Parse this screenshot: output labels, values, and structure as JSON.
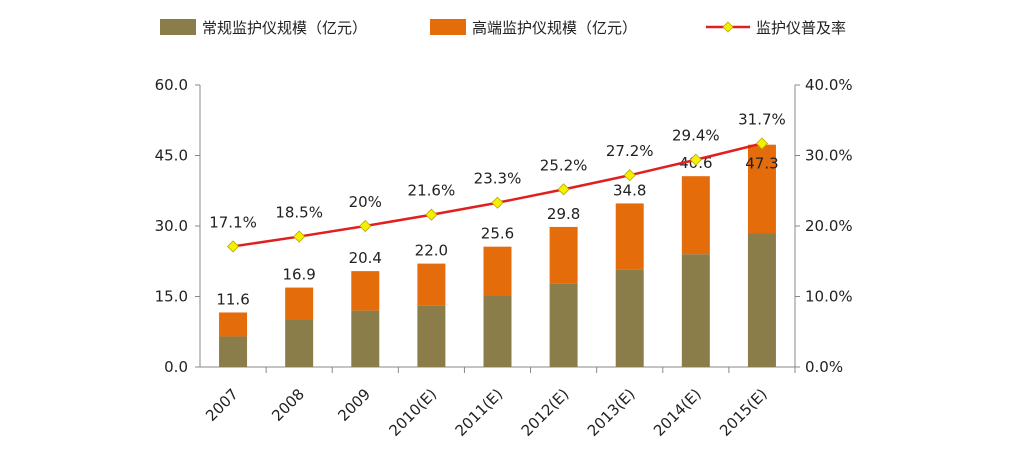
{
  "chart_data": {
    "type": "bar",
    "stacked": true,
    "categories": [
      "2007",
      "2008",
      "2009",
      "2010(E)",
      "2011(E)",
      "2012(E)",
      "2013(E)",
      "2014(E)",
      "2015(E)"
    ],
    "series": [
      {
        "name": "常规监护仪规模（亿元）",
        "type": "bar",
        "axis": "left",
        "color": "#8b7d4a",
        "values": [
          6.5,
          10.0,
          12.0,
          13.0,
          15.3,
          17.8,
          20.8,
          24.0,
          28.5
        ]
      },
      {
        "name": "高端监护仪规模（亿元）",
        "type": "bar",
        "axis": "left",
        "color": "#e46c0a",
        "values": [
          5.1,
          6.9,
          8.4,
          9.0,
          10.3,
          12.0,
          14.0,
          16.6,
          18.8
        ]
      },
      {
        "name": "监护仪普及率",
        "type": "line",
        "axis": "right",
        "color": "#e02020",
        "marker_color": "#f5f000",
        "values": [
          17.1,
          18.5,
          20.0,
          21.6,
          23.3,
          25.2,
          27.2,
          29.4,
          31.7
        ],
        "labels": [
          "17.1%",
          "18.5%",
          "20%",
          "21.6%",
          "23.3%",
          "25.2%",
          "27.2%",
          "29.4%",
          "31.7%"
        ]
      }
    ],
    "total_labels": [
      "11.6",
      "16.9",
      "20.4",
      "22.0",
      "25.6",
      "29.8",
      "34.8",
      "40.6",
      "47.3"
    ],
    "left_axis": {
      "ylim": [
        0,
        60
      ],
      "ticks": [
        "0.0",
        "15.0",
        "30.0",
        "45.0",
        "60.0"
      ]
    },
    "right_axis": {
      "ylim": [
        0,
        40
      ],
      "ticks": [
        "0.0%",
        "10.0%",
        "20.0%",
        "30.0%",
        "40.0%"
      ]
    },
    "legend": "top",
    "grid": false
  }
}
